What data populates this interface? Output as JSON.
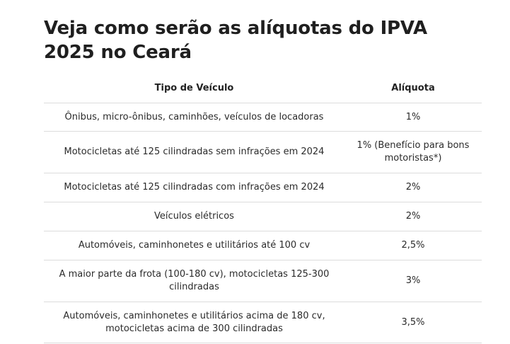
{
  "article": {
    "title": "Veja como serão as alíquotas do IPVA 2025 no Ceará"
  },
  "table": {
    "headers": [
      "Tipo de Veículo",
      "Alíquota"
    ],
    "rows": [
      {
        "vehicle": "Ônibus, micro-ônibus, caminhões, veículos de locadoras",
        "rate": "1%"
      },
      {
        "vehicle": "Motocicletas até 125 cilindradas sem infrações em 2024",
        "rate": "1% (Benefício para bons motoristas*)"
      },
      {
        "vehicle": "Motocicletas até 125 cilindradas com infrações em 2024",
        "rate": "2%"
      },
      {
        "vehicle": "Veículos elétricos",
        "rate": "2%"
      },
      {
        "vehicle": "Automóveis, caminhonetes e utilitários até 100 cv",
        "rate": "2,5%"
      },
      {
        "vehicle": "A maior parte da frota (100-180 cv), motocicletas 125-300 cilindradas",
        "rate": "3%"
      },
      {
        "vehicle": "Automóveis, caminhonetes e utilitários acima de 180 cv, motocicletas acima de 300 cilindradas",
        "rate": "3,5%"
      }
    ]
  }
}
